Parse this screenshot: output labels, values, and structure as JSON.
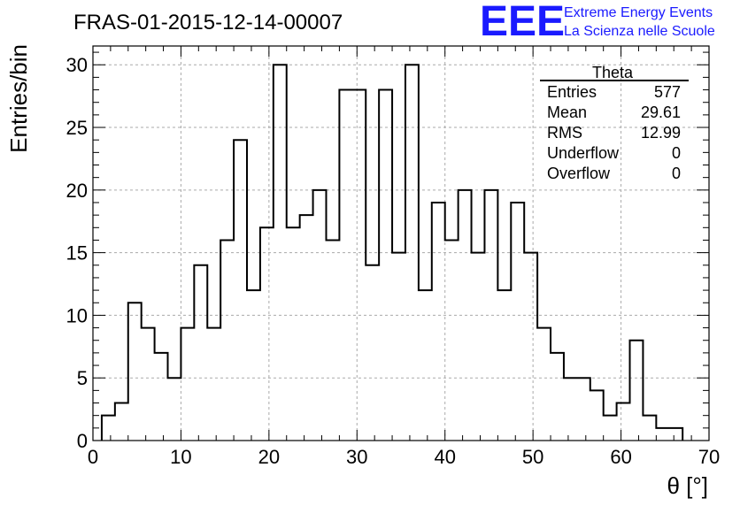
{
  "chart_data": {
    "type": "histogram",
    "title": "FRAS-01-2015-12-14-00007",
    "xlabel": "θ [°]",
    "ylabel": "Entries/bin",
    "xlim": [
      0,
      70
    ],
    "ylim": [
      0,
      31.5
    ],
    "x_ticks": [
      0,
      10,
      20,
      30,
      40,
      50,
      60,
      70
    ],
    "y_ticks": [
      0,
      5,
      10,
      15,
      20,
      25,
      30
    ],
    "grid": true,
    "bin_edges_start": 1,
    "bin_width": 1.5,
    "values": [
      2,
      3,
      11,
      9,
      7,
      5,
      9,
      14,
      9,
      16,
      24,
      12,
      17,
      30,
      17,
      18,
      20,
      16,
      28,
      28,
      14,
      28,
      15,
      30,
      12,
      19,
      16,
      20,
      15,
      20,
      12,
      19,
      15,
      9,
      7,
      5,
      5,
      4,
      2,
      3,
      8,
      2,
      1,
      1
    ],
    "series": [
      {
        "values_ref": "values"
      }
    ]
  },
  "stats": {
    "name": "Theta",
    "rows": [
      {
        "label": "Entries",
        "value": "577"
      },
      {
        "label": "Mean",
        "value": "29.61"
      },
      {
        "label": "RMS",
        "value": "12.99"
      },
      {
        "label": "Underflow",
        "value": "0"
      },
      {
        "label": "Overflow",
        "value": "0"
      }
    ]
  },
  "logo": {
    "mark": "EEE",
    "line1": "Extreme Energy Events",
    "line2": "La Scienza nelle Scuole",
    "color": "#1a1aff"
  }
}
